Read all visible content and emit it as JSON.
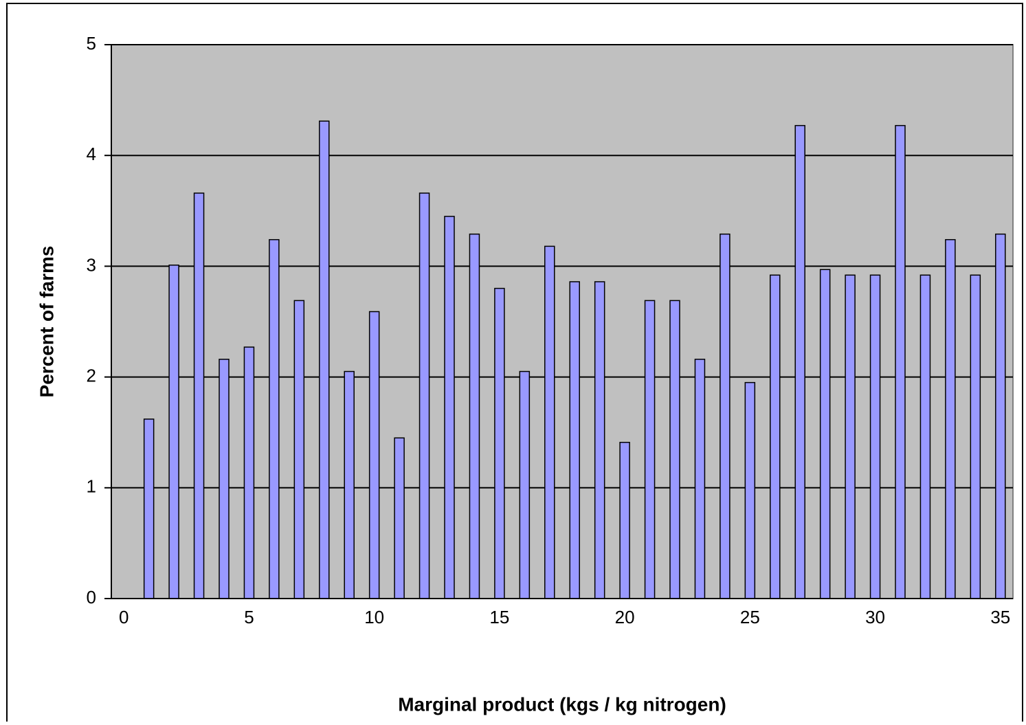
{
  "chart_data": {
    "type": "bar",
    "x_label": "Marginal product (kgs / kg nitrogen)",
    "y_label": "Percent of farms",
    "x": [
      1,
      2,
      3,
      4,
      5,
      6,
      7,
      8,
      9,
      10,
      11,
      12,
      13,
      14,
      15,
      16,
      17,
      18,
      19,
      20,
      21,
      22,
      23,
      24,
      25,
      26,
      27,
      28,
      29,
      30,
      31,
      32,
      33,
      34,
      35
    ],
    "values": [
      1.62,
      3.01,
      3.66,
      2.16,
      2.27,
      3.24,
      2.69,
      4.31,
      2.05,
      2.59,
      1.45,
      3.66,
      3.45,
      3.29,
      2.8,
      2.05,
      3.18,
      2.86,
      2.86,
      1.41,
      2.69,
      2.69,
      2.16,
      3.29,
      1.95,
      2.92,
      4.27,
      2.97,
      2.92,
      2.92,
      4.27,
      2.92,
      3.24,
      2.92,
      3.29
    ],
    "color": "#9999ff",
    "xlim": [
      -0.5,
      35.5
    ],
    "xticks": [
      0,
      5,
      10,
      15,
      20,
      25,
      30,
      35
    ],
    "ylim": [
      0,
      5
    ],
    "yticks": [
      0,
      1,
      2,
      3,
      4,
      5
    ],
    "grid": true
  }
}
